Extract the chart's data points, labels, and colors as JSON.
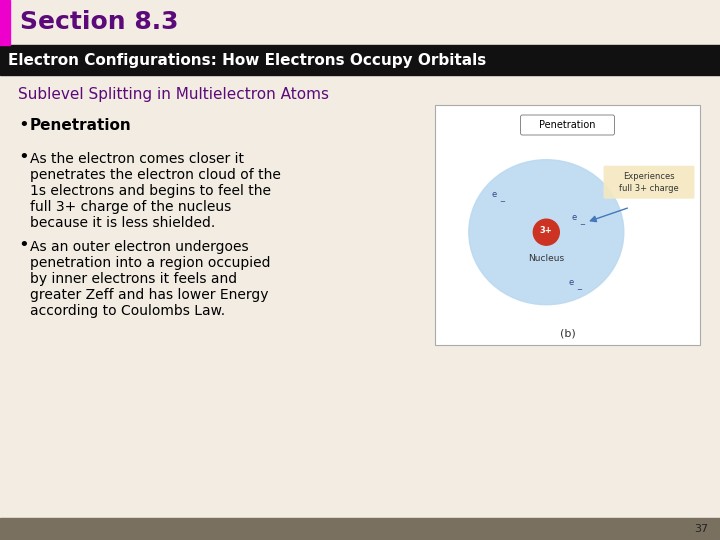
{
  "section_title": "Section 8.3",
  "section_title_color": "#5c0a7a",
  "header_text": "Electron Configurations: How Electrons Occupy Orbitals",
  "header_bg": "#111111",
  "header_text_color": "#ffffff",
  "subtitle": "Sublevel Splitting in Multielectron Atoms",
  "subtitle_color": "#5c0a7a",
  "bg_color": "#f2ece3",
  "bullet1_bold": "Penetration",
  "bullet2_lines": [
    "As the electron comes closer it",
    "penetrates the electron cloud of the",
    "1s electrons and begins to feel the",
    "full 3+ charge of the nucleus",
    "because it is less shielded."
  ],
  "bullet3_lines": [
    "As an outer electron undergoes",
    "penetration into a region occupied",
    "by inner electrons it feels and",
    "greater Zeff and has lower Energy",
    "according to Coulombs Law."
  ],
  "footer_color": "#7a7060",
  "page_number": "37",
  "left_accent_color": "#ee00cc",
  "diagram_label": "Penetration",
  "diagram_caption": "(b)",
  "experiences_label": "Experiences\nfull 3+ charge",
  "nucleus_label": "Nucleus",
  "cloud_color": "#b8d8f0",
  "nucleus_color": "#cc3322"
}
